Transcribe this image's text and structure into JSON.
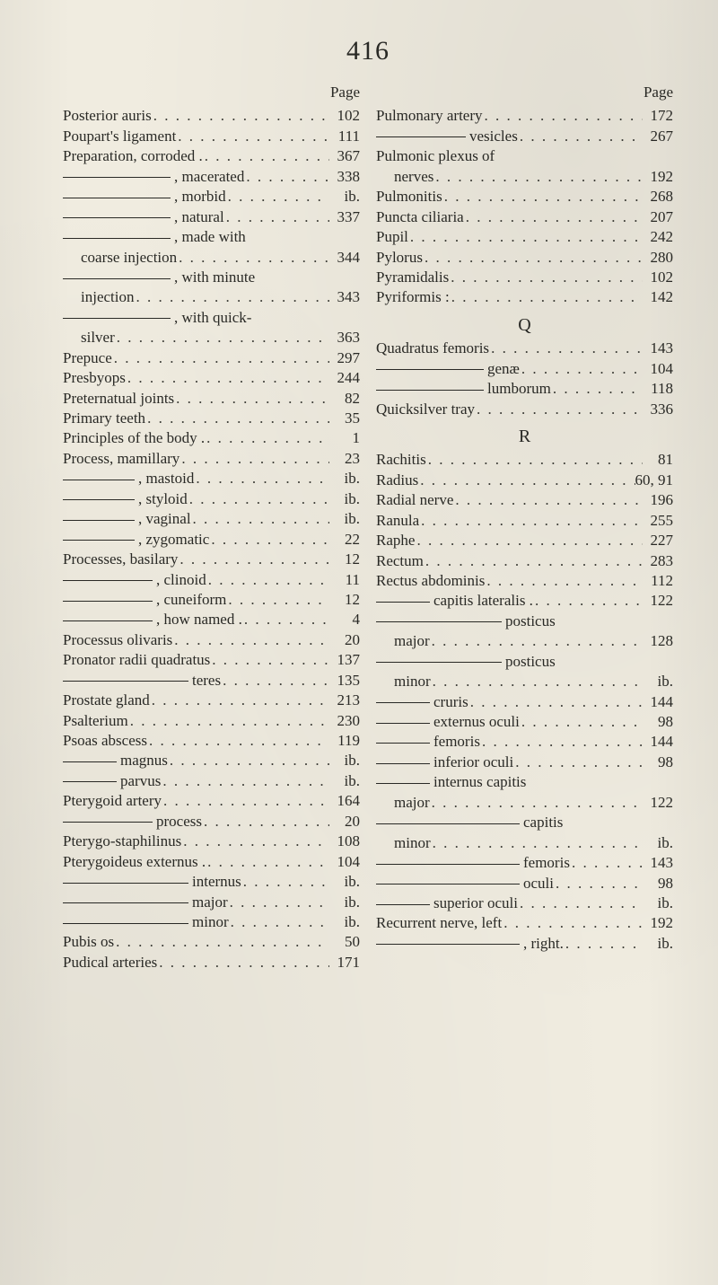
{
  "page_number": "416",
  "header_label": "Page",
  "typography": {
    "body_font": "Georgia / Times-like serif",
    "body_size_pt": 12,
    "page_number_size_pt": 20,
    "text_color": "#2a2a26",
    "background_color": "#f0ece0"
  },
  "left": [
    {
      "term": "Posterior auris",
      "page": "102"
    },
    {
      "term": "Poupart's ligament",
      "page": "111"
    },
    {
      "term": "Preparation, corroded .",
      "page": "367"
    },
    {
      "term": ", macerated",
      "page": "338",
      "cont": true,
      "dash": 120
    },
    {
      "term": ", morbid",
      "page": "ib.",
      "cont": true,
      "dash": 120
    },
    {
      "term": ", natural",
      "page": "337",
      "cont": true,
      "dash": 120
    },
    {
      "term": ", made with",
      "page": "",
      "cont": true,
      "dash": 120,
      "no_leader": true
    },
    {
      "term": "coarse injection",
      "page": "344",
      "indent": 20
    },
    {
      "term": ", with minute",
      "page": "",
      "cont": true,
      "dash": 120,
      "no_leader": true
    },
    {
      "term": "injection",
      "page": "343",
      "indent": 20
    },
    {
      "term": ", with quick-",
      "page": "",
      "cont": true,
      "dash": 120,
      "no_leader": true
    },
    {
      "term": "silver",
      "page": "363",
      "indent": 20
    },
    {
      "term": "Prepuce",
      "page": "297"
    },
    {
      "term": "Presbyops",
      "page": "244"
    },
    {
      "term": "Preternatual joints",
      "page": "82"
    },
    {
      "term": "Primary teeth",
      "page": "35"
    },
    {
      "term": "Principles of the body .",
      "page": "1"
    },
    {
      "term": "Process, mamillary",
      "page": "23"
    },
    {
      "term": ", mastoid",
      "page": "ib.",
      "cont": true,
      "dash": 80
    },
    {
      "term": ", styloid",
      "page": "ib.",
      "cont": true,
      "dash": 80
    },
    {
      "term": ", vaginal",
      "page": "ib.",
      "cont": true,
      "dash": 80
    },
    {
      "term": ", zygomatic",
      "page": "22",
      "cont": true,
      "dash": 80
    },
    {
      "term": "Processes, basilary",
      "page": "12"
    },
    {
      "term": ", clinoid",
      "page": "11",
      "cont": true,
      "dash": 100
    },
    {
      "term": ", cuneiform",
      "page": "12",
      "cont": true,
      "dash": 100
    },
    {
      "term": ", how named .",
      "page": "4",
      "cont": true,
      "dash": 100
    },
    {
      "term": "Processus olivaris",
      "page": "20"
    },
    {
      "term": "Pronator radii quadratus",
      "page": "137"
    },
    {
      "term": "teres",
      "page": "135",
      "cont": true,
      "dash": 140
    },
    {
      "term": "Prostate gland",
      "page": "213"
    },
    {
      "term": "Psalterium",
      "page": "230"
    },
    {
      "term": "Psoas abscess",
      "page": "119"
    },
    {
      "term": "magnus",
      "page": "ib.",
      "cont": true,
      "dash": 60
    },
    {
      "term": "parvus",
      "page": "ib.",
      "cont": true,
      "dash": 60
    },
    {
      "term": "Pterygoid artery",
      "page": "164"
    },
    {
      "term": "process",
      "page": "20",
      "cont": true,
      "dash": 100
    },
    {
      "term": "Pterygo-staphilinus",
      "page": "108"
    },
    {
      "term": "Pterygoideus externus .",
      "page": "104"
    },
    {
      "term": "internus",
      "page": "ib.",
      "cont": true,
      "dash": 140
    },
    {
      "term": "major",
      "page": "ib.",
      "cont": true,
      "dash": 140
    },
    {
      "term": "minor",
      "page": "ib.",
      "cont": true,
      "dash": 140
    },
    {
      "term": "Pubis os",
      "page": "50"
    },
    {
      "term": "Pudical arteries",
      "page": "171"
    }
  ],
  "right": [
    {
      "term": "Pulmonary artery",
      "page": "172"
    },
    {
      "term": "vesicles",
      "page": "267",
      "cont": true,
      "dash": 100
    },
    {
      "term": "Pulmonic plexus of",
      "page": "",
      "no_leader": true
    },
    {
      "term": "nerves",
      "page": "192",
      "indent": 20
    },
    {
      "term": "Pulmonitis",
      "page": "268"
    },
    {
      "term": "Puncta ciliaria",
      "page": "207"
    },
    {
      "term": "Pupil",
      "page": "242"
    },
    {
      "term": "Pylorus",
      "page": "280"
    },
    {
      "term": "Pyramidalis",
      "page": "102"
    },
    {
      "term": "Pyriformis :",
      "page": "142"
    },
    {
      "section": "Q"
    },
    {
      "term": "Quadratus femoris",
      "page": "143"
    },
    {
      "term": "genæ",
      "page": "104",
      "cont": true,
      "dash": 120
    },
    {
      "term": "lumborum",
      "page": "118",
      "cont": true,
      "dash": 120
    },
    {
      "term": "Quicksilver tray",
      "page": "336"
    },
    {
      "section": "R"
    },
    {
      "term": "Rachitis",
      "page": "81"
    },
    {
      "term": "Radius",
      "page": "60, 91"
    },
    {
      "term": "Radial nerve",
      "page": "196"
    },
    {
      "term": "Ranula",
      "page": "255"
    },
    {
      "term": "Raphe",
      "page": "227"
    },
    {
      "term": "Rectum",
      "page": "283"
    },
    {
      "term": "Rectus abdominis",
      "page": "112"
    },
    {
      "term": "capitis lateralis .",
      "page": "122",
      "cont": true,
      "dash": 60
    },
    {
      "term": "posticus",
      "page": "",
      "cont": true,
      "dash": 140,
      "no_leader": true
    },
    {
      "term": "major",
      "page": "128",
      "indent": 20
    },
    {
      "term": "posticus",
      "page": "",
      "cont": true,
      "dash": 140,
      "no_leader": true
    },
    {
      "term": "minor",
      "page": "ib.",
      "indent": 20
    },
    {
      "term": "cruris",
      "page": "144",
      "cont": true,
      "dash": 60
    },
    {
      "term": "externus oculi",
      "page": "98",
      "cont": true,
      "dash": 60
    },
    {
      "term": "femoris",
      "page": "144",
      "cont": true,
      "dash": 60
    },
    {
      "term": "inferior oculi",
      "page": "98",
      "cont": true,
      "dash": 60
    },
    {
      "term": "internus capitis",
      "page": "",
      "cont": true,
      "dash": 60,
      "no_leader": true
    },
    {
      "term": "major",
      "page": "122",
      "indent": 20
    },
    {
      "term": "capitis",
      "page": "",
      "cont": true,
      "dash": 160,
      "no_leader": true
    },
    {
      "term": "minor",
      "page": "ib.",
      "indent": 20
    },
    {
      "term": "femoris",
      "page": "143",
      "cont": true,
      "dash": 160
    },
    {
      "term": "oculi",
      "page": "98",
      "cont": true,
      "dash": 160
    },
    {
      "term": "superior oculi",
      "page": "ib.",
      "cont": true,
      "dash": 60
    },
    {
      "term": "Recurrent nerve, left",
      "page": "192"
    },
    {
      "term": ", right.",
      "page": "ib.",
      "cont": true,
      "dash": 160
    }
  ]
}
